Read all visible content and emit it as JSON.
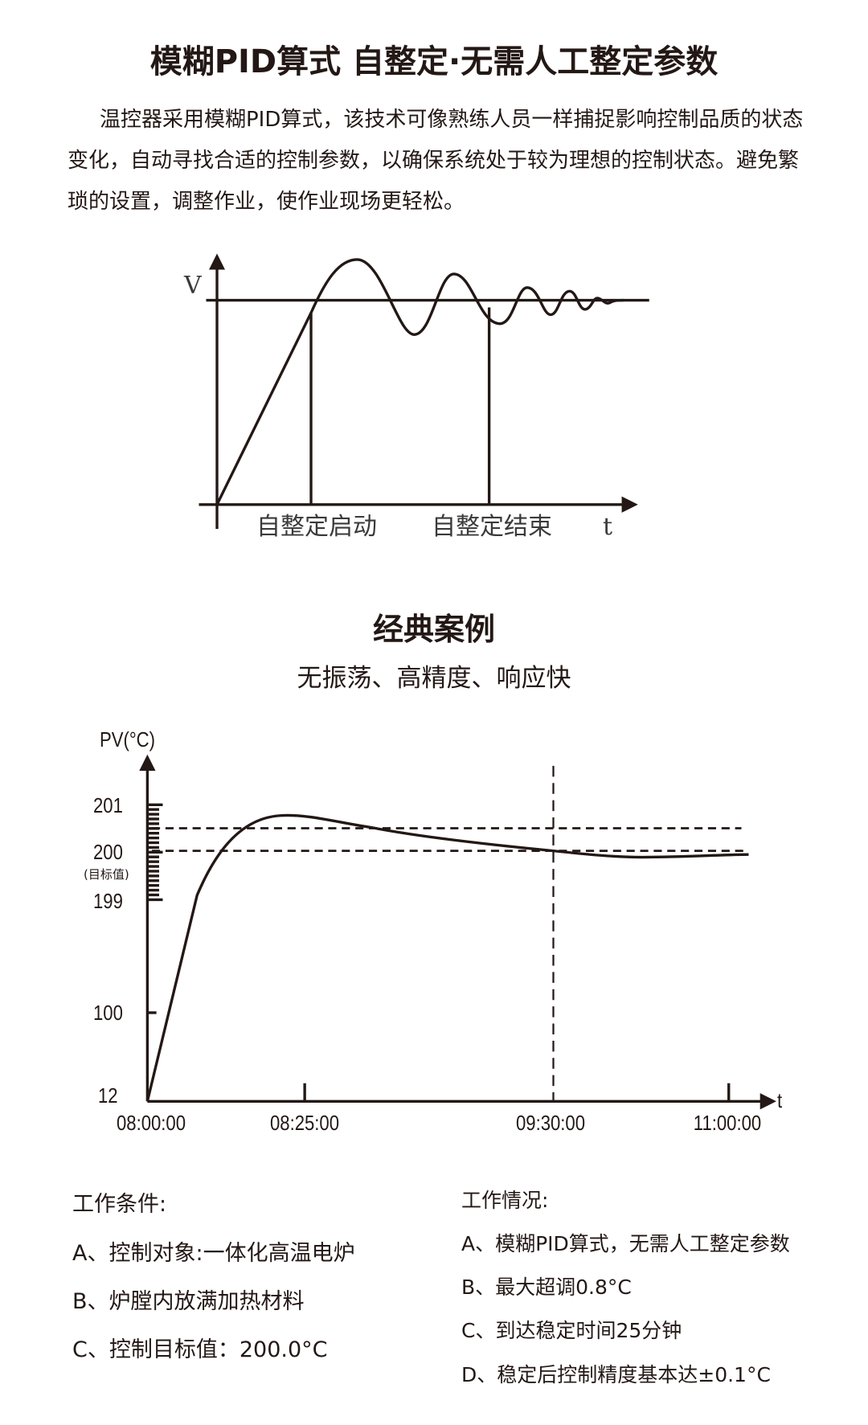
{
  "title": "模糊PID算式   自整定·无需人工整定参数",
  "intro": "温控器采用模糊PID算式，该技术可像熟练人员一样捕捉影响控制品质的状态变化，自动寻找合适的控制参数，以确保系统处于较为理想的控制状态。避免繁琐的设置，调整作业，使作业现场更轻松。",
  "chart1": {
    "y_label": "V",
    "x_label": "t",
    "markers": [
      "自整定启动",
      "自整定结束"
    ]
  },
  "case": {
    "title": "经典案例",
    "subtitle": "无振荡、高精度、响应快"
  },
  "chart2": {
    "y_label": "PV(°C)",
    "x_label": "t",
    "y_ticks": [
      "201",
      "200",
      "199",
      "100",
      "12"
    ],
    "target_note": "(目标值)",
    "x_ticks": [
      "08:00:00",
      "08:25:00",
      "09:30:00",
      "11:00:00"
    ]
  },
  "conditions": {
    "heading": "工作条件:",
    "items": [
      "A、控制对象:一体化高温电炉",
      "B、炉膛内放满加热材料",
      "C、控制目标值：200.0°C"
    ]
  },
  "results": {
    "heading": "工作情况:",
    "items": [
      "A、模糊PID算式，无需人工整定参数",
      "B、最大超调0.8°C",
      "C、到达稳定时间25分钟",
      "D、稳定后控制精度基本达±0.1°C"
    ]
  },
  "colors": {
    "text": "#231815",
    "line": "#231815"
  }
}
